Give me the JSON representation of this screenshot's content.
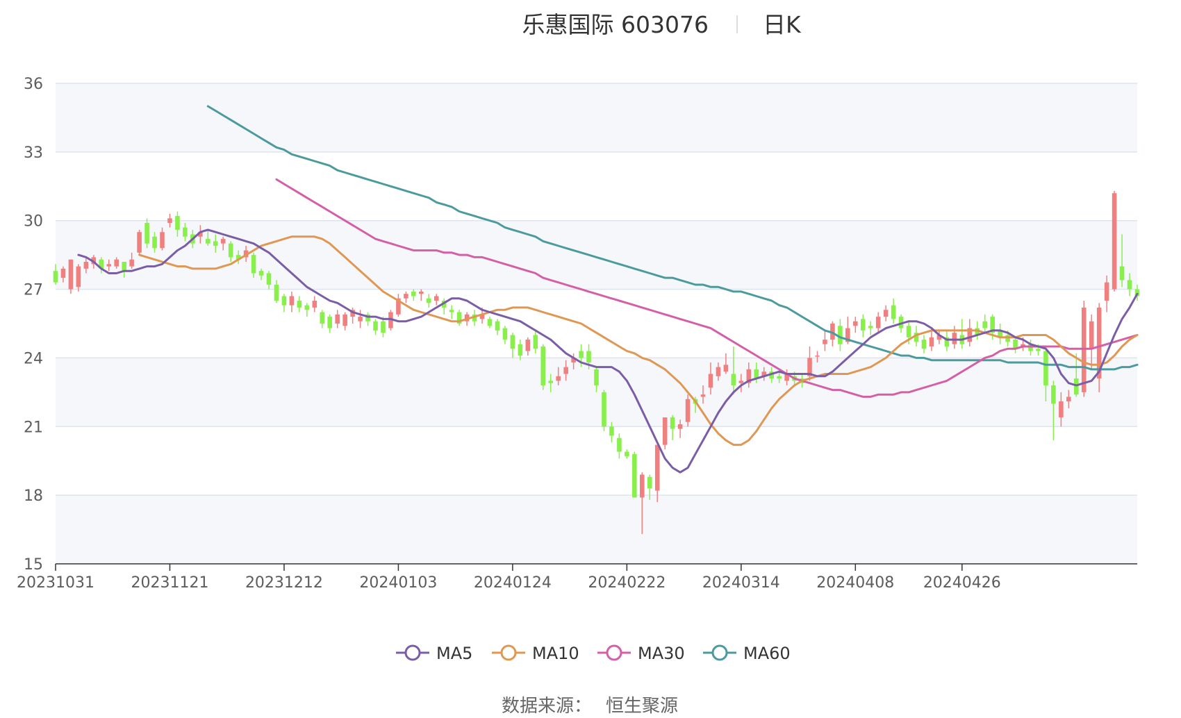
{
  "title": {
    "name": "乐惠国际 603076",
    "period": "日K"
  },
  "source": {
    "label": "数据来源：",
    "value": "恒生聚源"
  },
  "colors": {
    "up": "#f08080",
    "down": "#88ef4b",
    "ma5": "#7b5ca6",
    "ma10": "#e09752",
    "ma30": "#d45fa6",
    "ma60": "#4b9a9e",
    "band": "#f5f7fb",
    "grid": "#dde3ef"
  },
  "chart_data": {
    "type": "candlestick",
    "ylim": [
      15,
      36
    ],
    "yticks": [
      15,
      18,
      21,
      24,
      27,
      30,
      33,
      36
    ],
    "x_tick_labels": [
      "20231031",
      "20231121",
      "20231212",
      "20240103",
      "20240124",
      "20240222",
      "20240314",
      "20240408",
      "20240426"
    ],
    "x_tick_indices": [
      0,
      15,
      30,
      45,
      60,
      75,
      90,
      105,
      119
    ],
    "legend": [
      "MA5",
      "MA10",
      "MA30",
      "MA60"
    ],
    "candles": [
      [
        27.8,
        27.3,
        28.1,
        27.2
      ],
      [
        27.5,
        27.9,
        28.0,
        27.3
      ],
      [
        27.0,
        28.3,
        28.3,
        26.8
      ],
      [
        27.1,
        28.0,
        28.1,
        26.9
      ],
      [
        27.9,
        28.2,
        28.4,
        27.7
      ],
      [
        28.1,
        28.4,
        28.5,
        27.9
      ],
      [
        28.3,
        27.9,
        28.4,
        27.7
      ],
      [
        28.0,
        28.1,
        28.3,
        27.8
      ],
      [
        28.0,
        28.3,
        28.4,
        27.9
      ],
      [
        28.2,
        27.8,
        28.2,
        27.5
      ],
      [
        28.0,
        28.3,
        28.6,
        27.9
      ],
      [
        28.6,
        29.5,
        29.6,
        28.5
      ],
      [
        29.9,
        29.0,
        30.1,
        28.8
      ],
      [
        29.3,
        28.8,
        29.5,
        28.6
      ],
      [
        28.8,
        29.5,
        29.7,
        28.7
      ],
      [
        29.9,
        30.1,
        30.3,
        29.7
      ],
      [
        30.2,
        29.6,
        30.4,
        29.3
      ],
      [
        29.7,
        29.3,
        29.9,
        29.1
      ],
      [
        29.4,
        29.0,
        29.6,
        28.8
      ],
      [
        29.3,
        29.5,
        29.8,
        29.0
      ],
      [
        29.2,
        29.0,
        29.6,
        28.9
      ],
      [
        29.1,
        28.9,
        29.4,
        28.6
      ],
      [
        29.0,
        29.2,
        29.3,
        28.7
      ],
      [
        29.0,
        28.4,
        29.1,
        28.2
      ],
      [
        28.5,
        28.3,
        28.7,
        28.1
      ],
      [
        28.4,
        28.7,
        28.9,
        28.2
      ],
      [
        28.5,
        27.7,
        28.6,
        27.5
      ],
      [
        27.8,
        27.6,
        27.9,
        27.4
      ],
      [
        27.7,
        27.2,
        27.8,
        27.0
      ],
      [
        27.2,
        26.5,
        27.4,
        26.4
      ],
      [
        26.7,
        26.3,
        26.8,
        26.0
      ],
      [
        26.3,
        26.7,
        26.9,
        26.0
      ],
      [
        26.5,
        26.2,
        26.7,
        26.0
      ],
      [
        26.3,
        26.1,
        26.4,
        25.8
      ],
      [
        26.2,
        26.5,
        26.7,
        26.0
      ],
      [
        26.0,
        25.5,
        26.1,
        25.3
      ],
      [
        25.8,
        25.3,
        25.9,
        25.1
      ],
      [
        25.5,
        25.9,
        26.1,
        25.3
      ],
      [
        25.4,
        25.9,
        26.0,
        25.2
      ],
      [
        25.8,
        26.1,
        26.2,
        25.5
      ],
      [
        25.6,
        25.8,
        26.1,
        25.3
      ],
      [
        25.9,
        25.6,
        26.0,
        25.4
      ],
      [
        25.6,
        25.2,
        25.7,
        25.0
      ],
      [
        25.6,
        25.1,
        25.8,
        24.9
      ],
      [
        25.3,
        26.0,
        26.1,
        25.2
      ],
      [
        25.9,
        26.6,
        26.8,
        25.8
      ],
      [
        26.6,
        26.8,
        26.9,
        26.4
      ],
      [
        26.9,
        26.7,
        27.0,
        26.5
      ],
      [
        26.8,
        26.9,
        27.0,
        26.5
      ],
      [
        26.6,
        26.4,
        26.8,
        26.2
      ],
      [
        26.5,
        26.7,
        26.8,
        26.3
      ],
      [
        26.5,
        26.2,
        26.6,
        25.9
      ],
      [
        26.1,
        26.0,
        26.3,
        25.7
      ],
      [
        26.0,
        25.5,
        26.1,
        25.4
      ],
      [
        25.6,
        25.9,
        26.0,
        25.4
      ],
      [
        25.9,
        25.6,
        26.1,
        25.4
      ],
      [
        25.7,
        25.9,
        26.2,
        25.5
      ],
      [
        25.7,
        25.4,
        25.8,
        25.3
      ],
      [
        25.6,
        25.2,
        25.7,
        25.0
      ],
      [
        25.3,
        24.8,
        25.4,
        24.6
      ],
      [
        25.0,
        24.4,
        25.1,
        24.0
      ],
      [
        24.6,
        24.1,
        24.8,
        23.9
      ],
      [
        24.3,
        24.8,
        24.9,
        24.1
      ],
      [
        25.0,
        24.4,
        25.2,
        24.2
      ],
      [
        24.5,
        22.8,
        24.6,
        22.6
      ],
      [
        23.0,
        22.9,
        23.3,
        22.5
      ],
      [
        23.0,
        23.2,
        23.6,
        22.8
      ],
      [
        23.3,
        23.6,
        23.9,
        23.0
      ],
      [
        23.8,
        24.0,
        24.2,
        23.5
      ],
      [
        24.3,
        24.0,
        24.6,
        23.6
      ],
      [
        24.3,
        23.8,
        24.6,
        23.5
      ],
      [
        23.5,
        22.8,
        23.6,
        22.5
      ],
      [
        22.5,
        21.0,
        22.6,
        20.8
      ],
      [
        21.0,
        20.6,
        21.2,
        20.3
      ],
      [
        20.5,
        19.9,
        20.7,
        19.6
      ],
      [
        19.9,
        19.7,
        20.0,
        19.6
      ],
      [
        19.8,
        17.9,
        19.9,
        17.9
      ],
      [
        17.9,
        18.9,
        19.0,
        16.3
      ],
      [
        18.8,
        18.3,
        18.9,
        17.8
      ],
      [
        18.2,
        20.2,
        20.2,
        17.7
      ],
      [
        20.2,
        21.4,
        21.4,
        20.0
      ],
      [
        21.4,
        20.9,
        21.5,
        20.4
      ],
      [
        20.9,
        21.1,
        21.3,
        20.5
      ],
      [
        21.2,
        22.2,
        22.4,
        21.0
      ],
      [
        22.2,
        22.0,
        22.3,
        21.6
      ],
      [
        22.3,
        22.4,
        22.8,
        22.0
      ],
      [
        22.7,
        23.3,
        23.8,
        22.4
      ],
      [
        23.2,
        23.6,
        23.8,
        23.0
      ],
      [
        23.4,
        23.7,
        24.2,
        23.3
      ],
      [
        23.3,
        22.8,
        24.5,
        22.4
      ],
      [
        22.9,
        23.0,
        23.3,
        22.5
      ],
      [
        22.9,
        23.5,
        23.8,
        22.7
      ],
      [
        23.5,
        23.1,
        23.8,
        22.9
      ],
      [
        23.2,
        23.4,
        23.6,
        23.0
      ],
      [
        23.4,
        23.1,
        23.6,
        22.9
      ],
      [
        23.2,
        23.1,
        23.5,
        22.9
      ],
      [
        23.0,
        23.3,
        23.5,
        22.8
      ],
      [
        23.2,
        23.0,
        23.4,
        22.8
      ],
      [
        23.1,
        22.9,
        23.3,
        22.7
      ],
      [
        23.2,
        24.0,
        24.5,
        23.0
      ],
      [
        24.1,
        24.1,
        24.3,
        23.8
      ],
      [
        24.6,
        24.8,
        25.2,
        24.3
      ],
      [
        24.8,
        25.5,
        25.6,
        24.5
      ],
      [
        25.4,
        24.6,
        25.7,
        24.3
      ],
      [
        24.7,
        25.3,
        25.8,
        24.6
      ],
      [
        25.4,
        25.6,
        25.8,
        25.1
      ],
      [
        25.7,
        25.2,
        25.9,
        24.9
      ],
      [
        25.4,
        25.3,
        25.6,
        25.0
      ],
      [
        25.3,
        25.8,
        26.0,
        25.1
      ],
      [
        25.8,
        26.1,
        26.3,
        25.6
      ],
      [
        26.3,
        25.7,
        26.6,
        25.5
      ],
      [
        25.8,
        25.3,
        25.9,
        25.1
      ],
      [
        25.4,
        24.9,
        25.6,
        24.6
      ],
      [
        25.1,
        24.7,
        25.4,
        24.5
      ],
      [
        24.8,
        24.4,
        25.0,
        24.2
      ],
      [
        24.5,
        24.9,
        25.3,
        24.3
      ],
      [
        24.8,
        25.0,
        25.2,
        24.6
      ],
      [
        24.9,
        24.5,
        25.2,
        24.3
      ],
      [
        24.6,
        25.1,
        25.4,
        24.4
      ],
      [
        25.0,
        24.6,
        25.7,
        24.4
      ],
      [
        24.7,
        25.3,
        25.7,
        24.5
      ],
      [
        25.3,
        25.0,
        25.6,
        24.8
      ],
      [
        25.6,
        25.3,
        25.9,
        25.1
      ],
      [
        25.8,
        25.1,
        25.9,
        24.8
      ],
      [
        25.2,
        24.9,
        25.5,
        24.6
      ],
      [
        25.0,
        24.7,
        25.2,
        24.5
      ],
      [
        24.8,
        24.4,
        24.9,
        24.2
      ],
      [
        24.5,
        24.6,
        24.9,
        24.3
      ],
      [
        24.6,
        24.3,
        24.8,
        24.1
      ],
      [
        24.4,
        24.3,
        24.6,
        24.1
      ],
      [
        24.3,
        22.8,
        24.4,
        22.1
      ],
      [
        22.8,
        22.0,
        23.0,
        20.4
      ],
      [
        21.4,
        22.1,
        22.5,
        21.0
      ],
      [
        22.1,
        22.3,
        22.6,
        21.8
      ],
      [
        23.1,
        22.4,
        24.2,
        22.3
      ],
      [
        22.5,
        26.2,
        26.5,
        22.3
      ],
      [
        24.4,
        25.6,
        25.9,
        23.5
      ],
      [
        23.1,
        26.2,
        26.4,
        22.5
      ],
      [
        26.5,
        27.3,
        27.6,
        26.0
      ],
      [
        27.0,
        31.2,
        31.3,
        26.9
      ],
      [
        28.0,
        27.4,
        29.4,
        27.1
      ],
      [
        27.4,
        27.0,
        27.7,
        26.7
      ],
      [
        27.0,
        26.7,
        27.2,
        26.5
      ]
    ],
    "ma5": [
      28.5,
      28.4,
      28.2,
      27.9,
      27.7,
      27.7,
      27.8,
      27.8,
      27.9,
      28.0,
      28.0,
      28.1,
      28.4,
      28.7,
      28.9,
      29.2,
      29.5,
      29.6,
      29.5,
      29.4,
      29.3,
      29.2,
      29.1,
      29.0,
      28.8,
      28.6,
      28.3,
      28.0,
      27.7,
      27.4,
      27.1,
      26.9,
      26.7,
      26.5,
      26.4,
      26.2,
      26.0,
      25.9,
      25.8,
      25.8,
      25.7,
      25.7,
      25.6,
      25.6,
      25.7,
      25.8,
      26.0,
      26.2,
      26.4,
      26.6,
      26.6,
      26.5,
      26.3,
      26.1,
      26.0,
      25.9,
      25.8,
      25.7,
      25.6,
      25.4,
      25.2,
      25.0,
      24.8,
      24.5,
      24.2,
      24.0,
      23.8,
      23.7,
      23.6,
      23.6,
      23.6,
      23.4,
      23.0,
      22.4,
      21.7,
      21.0,
      20.3,
      19.6,
      19.2,
      19.0,
      19.2,
      19.8,
      20.4,
      21.0,
      21.6,
      22.1,
      22.5,
      22.8,
      23.0,
      23.1,
      23.2,
      23.3,
      23.4,
      23.3,
      23.3,
      23.3,
      23.3,
      23.2,
      23.2,
      23.4,
      23.7,
      24.0,
      24.3,
      24.6,
      24.9,
      25.1,
      25.3,
      25.4,
      25.5,
      25.6,
      25.6,
      25.5,
      25.3,
      25.0,
      24.8,
      24.8,
      24.8,
      24.9,
      25.0,
      25.1,
      25.2,
      25.2,
      25.1,
      24.9,
      24.8,
      24.6,
      24.5,
      24.4,
      24.0,
      23.3,
      22.9,
      22.8,
      22.9,
      23.0,
      23.4,
      24.2,
      25.0,
      25.7,
      26.2,
      26.8
    ],
    "ma10": [
      28.5,
      28.4,
      28.3,
      28.2,
      28.1,
      28.0,
      28.0,
      27.9,
      27.9,
      27.9,
      27.9,
      28.0,
      28.1,
      28.3,
      28.5,
      28.7,
      28.9,
      29.0,
      29.1,
      29.2,
      29.3,
      29.3,
      29.3,
      29.3,
      29.2,
      29.0,
      28.7,
      28.4,
      28.1,
      27.8,
      27.5,
      27.2,
      26.9,
      26.7,
      26.5,
      26.3,
      26.1,
      26.0,
      25.9,
      25.8,
      25.7,
      25.6,
      25.6,
      25.7,
      25.8,
      25.9,
      26.0,
      26.1,
      26.1,
      26.2,
      26.2,
      26.2,
      26.1,
      26.0,
      25.9,
      25.8,
      25.7,
      25.6,
      25.5,
      25.3,
      25.1,
      24.9,
      24.7,
      24.5,
      24.3,
      24.2,
      24.0,
      23.9,
      23.7,
      23.5,
      23.2,
      22.9,
      22.5,
      22.1,
      21.6,
      21.1,
      20.7,
      20.4,
      20.2,
      20.2,
      20.4,
      20.8,
      21.3,
      21.8,
      22.2,
      22.5,
      22.8,
      23.0,
      23.1,
      23.2,
      23.3,
      23.3,
      23.3,
      23.3,
      23.4,
      23.5,
      23.6,
      23.8,
      24.0,
      24.3,
      24.6,
      24.8,
      25.0,
      25.1,
      25.2,
      25.2,
      25.2,
      25.2,
      25.2,
      25.2,
      25.2,
      25.1,
      25.0,
      24.9,
      24.9,
      24.9,
      25.0,
      25.0,
      25.0,
      25.0,
      24.8,
      24.5,
      24.2,
      24.0,
      23.8,
      23.7,
      23.7,
      23.8,
      24.1,
      24.5,
      24.8,
      25.0
    ],
    "ma30": [
      31.8,
      31.6,
      31.4,
      31.2,
      31.0,
      30.8,
      30.6,
      30.4,
      30.2,
      30.0,
      29.8,
      29.6,
      29.4,
      29.2,
      29.1,
      29.0,
      28.9,
      28.8,
      28.7,
      28.7,
      28.7,
      28.7,
      28.6,
      28.6,
      28.5,
      28.5,
      28.4,
      28.4,
      28.3,
      28.2,
      28.1,
      28.0,
      27.9,
      27.8,
      27.7,
      27.5,
      27.4,
      27.3,
      27.2,
      27.1,
      27.0,
      26.9,
      26.8,
      26.7,
      26.6,
      26.5,
      26.4,
      26.3,
      26.2,
      26.1,
      26.0,
      25.9,
      25.8,
      25.7,
      25.6,
      25.5,
      25.4,
      25.3,
      25.1,
      24.9,
      24.7,
      24.5,
      24.3,
      24.1,
      23.9,
      23.7,
      23.5,
      23.3,
      23.1,
      23.0,
      22.9,
      22.8,
      22.7,
      22.6,
      22.6,
      22.5,
      22.4,
      22.3,
      22.3,
      22.4,
      22.4,
      22.4,
      22.5,
      22.5,
      22.6,
      22.7,
      22.8,
      22.9,
      23.0,
      23.2,
      23.4,
      23.6,
      23.8,
      24.0,
      24.1,
      24.3,
      24.4,
      24.4,
      24.5,
      24.5,
      24.5,
      24.5,
      24.5,
      24.5,
      24.4,
      24.4,
      24.4,
      24.4,
      24.5,
      24.6,
      24.7,
      24.8,
      24.9,
      25.0
    ],
    "ma60": [
      35.0,
      34.8,
      34.6,
      34.4,
      34.2,
      34.0,
      33.8,
      33.6,
      33.4,
      33.2,
      33.1,
      32.9,
      32.8,
      32.7,
      32.6,
      32.5,
      32.4,
      32.2,
      32.1,
      32.0,
      31.9,
      31.8,
      31.7,
      31.6,
      31.5,
      31.4,
      31.3,
      31.2,
      31.1,
      31.0,
      30.8,
      30.7,
      30.6,
      30.4,
      30.3,
      30.2,
      30.1,
      30.0,
      29.9,
      29.7,
      29.6,
      29.5,
      29.4,
      29.3,
      29.1,
      29.0,
      28.9,
      28.8,
      28.7,
      28.6,
      28.5,
      28.4,
      28.3,
      28.2,
      28.1,
      28.0,
      27.9,
      27.8,
      27.7,
      27.6,
      27.5,
      27.5,
      27.4,
      27.3,
      27.2,
      27.2,
      27.1,
      27.1,
      27.0,
      26.9,
      26.9,
      26.8,
      26.7,
      26.6,
      26.5,
      26.3,
      26.2,
      26.0,
      25.8,
      25.6,
      25.4,
      25.2,
      25.1,
      24.9,
      24.8,
      24.7,
      24.6,
      24.5,
      24.4,
      24.3,
      24.2,
      24.1,
      24.1,
      24.0,
      24.0,
      23.9,
      23.9,
      23.9,
      23.9,
      23.9,
      23.9,
      23.9,
      23.9,
      23.9,
      23.9,
      23.8,
      23.8,
      23.8,
      23.8,
      23.8,
      23.7,
      23.7,
      23.7,
      23.6,
      23.6,
      23.6,
      23.5,
      23.5,
      23.5,
      23.5,
      23.6,
      23.6,
      23.7
    ]
  }
}
